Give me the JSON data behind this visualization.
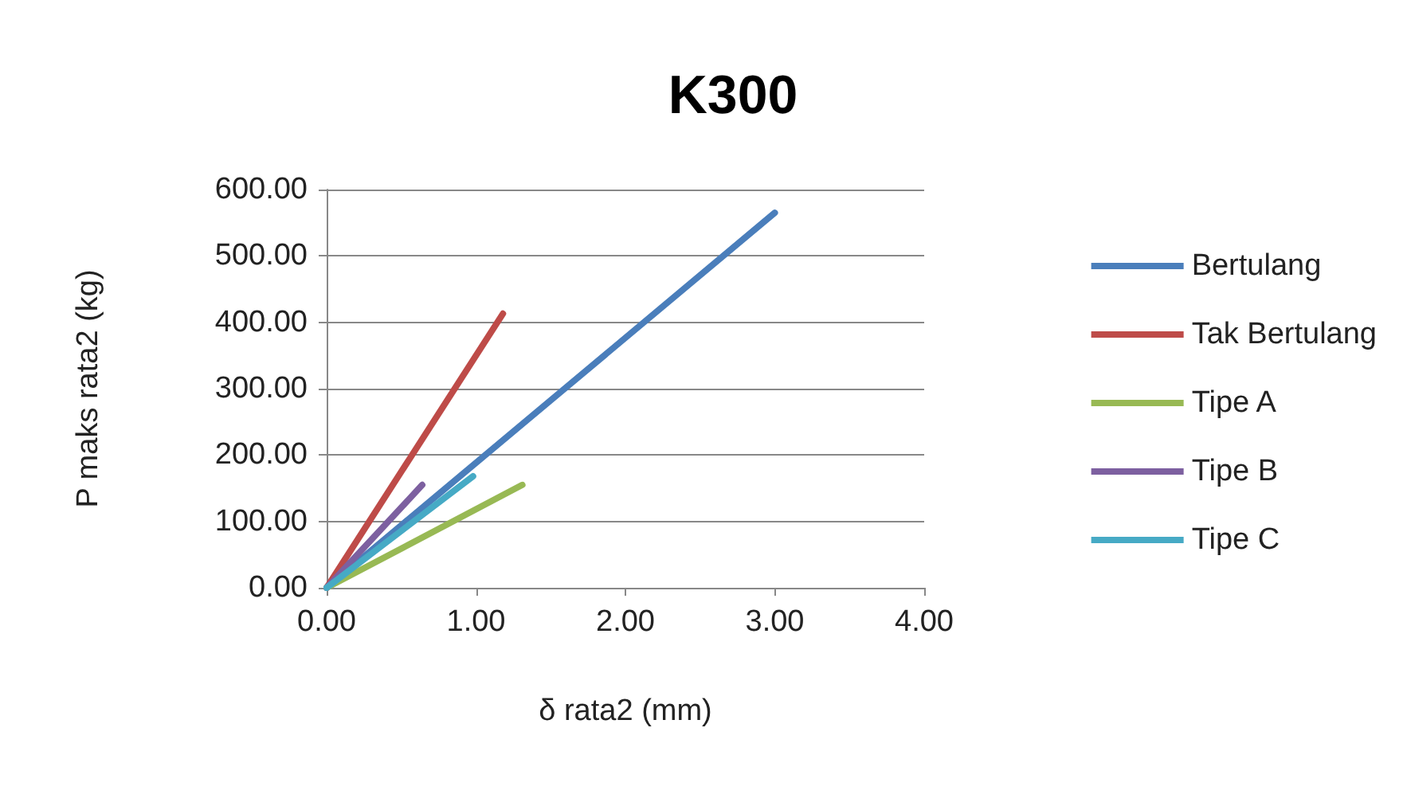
{
  "chart_data": {
    "type": "line",
    "title": "K300",
    "xlabel": "δ rata2 (mm)",
    "ylabel": "P maks rata2 (kg)",
    "xlim": [
      0,
      4
    ],
    "xticks": [
      {
        "value": 0,
        "label": "0.00"
      },
      {
        "value": 1,
        "label": "1.00"
      },
      {
        "value": 2,
        "label": "2.00"
      },
      {
        "value": 3,
        "label": "3.00"
      },
      {
        "value": 4,
        "label": "4.00"
      }
    ],
    "ylim": [
      0,
      600
    ],
    "yticks": [
      {
        "value": 0,
        "label": "0.00"
      },
      {
        "value": 100,
        "label": "100.00"
      },
      {
        "value": 200,
        "label": "200.00"
      },
      {
        "value": 300,
        "label": "300.00"
      },
      {
        "value": 400,
        "label": "400.00"
      },
      {
        "value": 500,
        "label": "500.00"
      },
      {
        "value": 600,
        "label": "600.00"
      }
    ],
    "grid": "y",
    "legend": "right",
    "marker": "none",
    "line_style": "solid",
    "series": [
      {
        "name": "Bertulang",
        "color": "#4a7ebb",
        "x": [
          0,
          3.0
        ],
        "values": [
          0,
          565
        ]
      },
      {
        "name": "Tak Bertulang",
        "color": "#be4b48",
        "x": [
          0,
          1.18
        ],
        "values": [
          0,
          413
        ]
      },
      {
        "name": "Tipe A",
        "color": "#98b954",
        "x": [
          0,
          1.31
        ],
        "values": [
          0,
          155
        ]
      },
      {
        "name": "Tipe B",
        "color": "#7d60a0",
        "x": [
          0,
          0.64
        ],
        "values": [
          0,
          155
        ]
      },
      {
        "name": "Tipe C",
        "color": "#46aac5",
        "x": [
          0,
          0.98
        ],
        "values": [
          0,
          168
        ]
      }
    ]
  }
}
